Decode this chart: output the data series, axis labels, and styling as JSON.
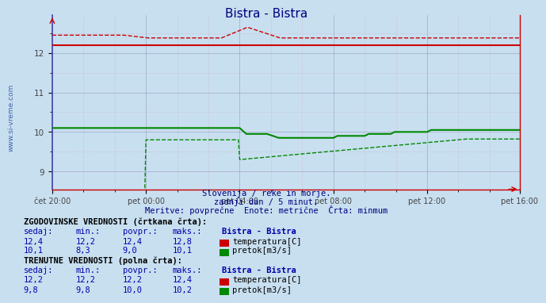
{
  "title": "Bistra - Bistra",
  "title_color": "#000080",
  "bg_color": "#c8dff0",
  "plot_bg_color": "#c8dff0",
  "x_ticks_labels": [
    "čet 20:00",
    "pet 00:00",
    "pet 04:00",
    "pet 08:00",
    "pet 12:00",
    "pet 16:00"
  ],
  "x_ticks_positions": [
    0,
    72,
    144,
    216,
    288,
    359
  ],
  "y_ticks": [
    9,
    10,
    11,
    12
  ],
  "ylim": [
    8.55,
    12.95
  ],
  "xlim": [
    0,
    359
  ],
  "n_points": 360,
  "subtitle1": "Slovenija / reke in morje.",
  "subtitle2": "zadnji dan / 5 minut.",
  "subtitle3": "Meritve: povprečne  Enote: metrične  Črta: minmum",
  "subtitle_color": "#000080",
  "temp_solid_color": "#cc0000",
  "temp_dashed_color": "#cc0000",
  "flow_solid_color": "#008800",
  "flow_dashed_color": "#008800",
  "watermark_color": "#1a3a8a",
  "left_label": "www.si-vreme.com",
  "major_grid_color": "#9999bb",
  "minor_grid_color": "#cc8888",
  "axis_color": "#cc0000"
}
